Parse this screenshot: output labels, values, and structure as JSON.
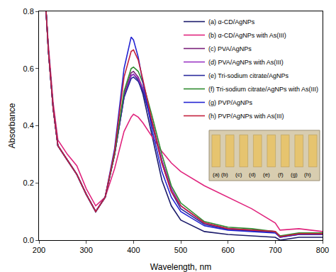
{
  "chart_data": {
    "type": "line",
    "x_label": "Wavelength, nm",
    "y_label": "Absorbance",
    "x": [
      215,
      220,
      230,
      240,
      260,
      280,
      300,
      320,
      340,
      360,
      380,
      395,
      400,
      410,
      420,
      440,
      460,
      480,
      500,
      550,
      600,
      650,
      700,
      710,
      750,
      800
    ],
    "series": [
      {
        "name": "(a) α-CD/AgNPs",
        "color": "#1b1b6b",
        "values": [
          0.8,
          0.66,
          0.46,
          0.33,
          0.28,
          0.23,
          0.16,
          0.1,
          0.15,
          0.3,
          0.5,
          0.575,
          0.58,
          0.56,
          0.51,
          0.36,
          0.21,
          0.12,
          0.07,
          0.03,
          0.02,
          0.015,
          0.01,
          0.0,
          0.01,
          0.01
        ]
      },
      {
        "name": "(b) α-CD/AgNPs with As(III)",
        "color": "#e0257e",
        "values": [
          0.8,
          0.68,
          0.48,
          0.35,
          0.3,
          0.26,
          0.18,
          0.12,
          0.15,
          0.25,
          0.38,
          0.43,
          0.44,
          0.43,
          0.41,
          0.36,
          0.31,
          0.27,
          0.24,
          0.19,
          0.15,
          0.11,
          0.06,
          0.035,
          0.04,
          0.03
        ]
      },
      {
        "name": "(c) PVA/AgNPs",
        "color": "#7a1f7a",
        "values": [
          0.8,
          0.66,
          0.46,
          0.33,
          0.28,
          0.23,
          0.16,
          0.1,
          0.15,
          0.3,
          0.51,
          0.585,
          0.59,
          0.57,
          0.53,
          0.41,
          0.28,
          0.18,
          0.12,
          0.06,
          0.04,
          0.035,
          0.03,
          0.012,
          0.022,
          0.022
        ]
      },
      {
        "name": "(d) PVA/AgNPs with As(III)",
        "color": "#9b35c4",
        "values": [
          0.8,
          0.66,
          0.46,
          0.33,
          0.28,
          0.23,
          0.16,
          0.1,
          0.15,
          0.3,
          0.5,
          0.575,
          0.58,
          0.565,
          0.525,
          0.41,
          0.28,
          0.18,
          0.12,
          0.06,
          0.04,
          0.035,
          0.03,
          0.012,
          0.022,
          0.022
        ]
      },
      {
        "name": "(e) Tri-sodium citrate/AgNPs",
        "color": "#2a2a9c",
        "values": [
          0.8,
          0.66,
          0.46,
          0.33,
          0.28,
          0.23,
          0.16,
          0.1,
          0.15,
          0.3,
          0.5,
          0.565,
          0.57,
          0.555,
          0.52,
          0.4,
          0.27,
          0.17,
          0.11,
          0.055,
          0.038,
          0.032,
          0.028,
          0.01,
          0.02,
          0.02
        ]
      },
      {
        "name": "(f) Tri-sodium citrate/AgNPs with As(III)",
        "color": "#2e8b2e",
        "values": [
          0.8,
          0.66,
          0.46,
          0.33,
          0.28,
          0.23,
          0.16,
          0.1,
          0.15,
          0.3,
          0.52,
          0.6,
          0.605,
          0.59,
          0.55,
          0.43,
          0.3,
          0.19,
          0.13,
          0.065,
          0.045,
          0.04,
          0.03,
          0.015,
          0.025,
          0.025
        ]
      },
      {
        "name": "(g) PVP/AgNPs",
        "color": "#2323d2",
        "values": [
          0.8,
          0.66,
          0.46,
          0.33,
          0.28,
          0.23,
          0.16,
          0.1,
          0.15,
          0.32,
          0.6,
          0.71,
          0.7,
          0.64,
          0.55,
          0.38,
          0.24,
          0.15,
          0.1,
          0.05,
          0.035,
          0.03,
          0.025,
          0.01,
          0.02,
          0.02
        ]
      },
      {
        "name": "(h) PVP/AgNPs with As(III)",
        "color": "#c4213c",
        "values": [
          0.8,
          0.66,
          0.46,
          0.33,
          0.28,
          0.23,
          0.16,
          0.1,
          0.15,
          0.31,
          0.57,
          0.66,
          0.665,
          0.63,
          0.56,
          0.41,
          0.27,
          0.17,
          0.12,
          0.06,
          0.04,
          0.035,
          0.03,
          0.012,
          0.022,
          0.022
        ]
      }
    ],
    "xlim": [
      200,
      800
    ],
    "xticks": [
      200,
      300,
      400,
      500,
      600,
      700,
      800
    ],
    "ylim": [
      0,
      0.8
    ],
    "yticks": [
      {
        "value": 0,
        "label": "0.0"
      },
      0.2,
      0.4,
      0.6,
      0.8
    ],
    "grid": false,
    "legend": "top right",
    "annotations": [
      "(a)",
      "(b)",
      "(c)",
      "(d)",
      "(e)",
      "(f)",
      "(g)",
      "(h)"
    ]
  }
}
